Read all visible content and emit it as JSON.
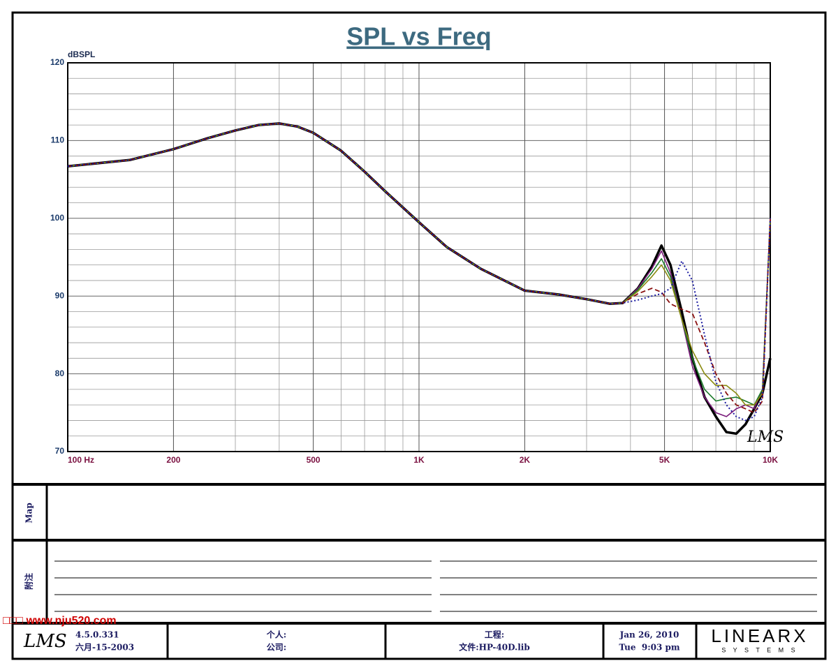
{
  "chart_data": {
    "type": "line",
    "title": "SPL vs Freq",
    "y_label": "dBSPL",
    "watermark": "LMS",
    "x": [
      100,
      150,
      200,
      250,
      300,
      350,
      400,
      450,
      500,
      600,
      700,
      800,
      1000,
      1200,
      1500,
      2000,
      2500,
      3000,
      3500,
      3800,
      4200,
      4600,
      4900,
      5200,
      5600,
      6000,
      6500,
      7000,
      7500,
      8000,
      8500,
      9000,
      9500,
      10000
    ],
    "series": [
      {
        "color": "#000000",
        "line_style": "bold",
        "values": [
          106.7,
          107.5,
          108.9,
          110.3,
          111.3,
          112,
          112.2,
          111.8,
          111,
          108.7,
          106,
          103.5,
          99.5,
          96.3,
          93.5,
          90.7,
          90.2,
          89.6,
          89,
          89.1,
          91,
          93.8,
          96.5,
          94,
          88,
          82,
          77,
          74.5,
          72.5,
          72.3,
          73.5,
          75.5,
          77.5,
          82
        ]
      },
      {
        "color": "#7a1a7a",
        "line_style": "solid",
        "values": [
          106.7,
          107.5,
          108.9,
          110.3,
          111.3,
          112,
          112.2,
          111.8,
          111,
          108.7,
          106,
          103.5,
          99.5,
          96.3,
          93.5,
          90.7,
          90.2,
          89.6,
          89,
          89.1,
          91,
          93.5,
          95.8,
          93,
          87,
          81,
          77,
          75,
          74.5,
          75.5,
          76,
          75.5,
          78,
          100
        ]
      },
      {
        "color": "#1a7a2a",
        "line_style": "solid",
        "values": [
          106.7,
          107.5,
          108.9,
          110.3,
          111.3,
          112,
          112.2,
          111.8,
          111,
          108.7,
          106,
          103.5,
          99.5,
          96.3,
          93.5,
          90.7,
          90.2,
          89.6,
          89,
          89.1,
          90.8,
          93,
          94.8,
          92.5,
          87,
          82,
          78,
          76.5,
          76.8,
          77,
          76.5,
          76,
          78,
          100
        ]
      },
      {
        "color": "#8a8a10",
        "line_style": "solid",
        "values": [
          106.7,
          107.5,
          108.9,
          110.3,
          111.3,
          112,
          112.2,
          111.8,
          111,
          108.7,
          106,
          103.5,
          99.5,
          96.3,
          93.5,
          90.7,
          90.2,
          89.6,
          89,
          89.1,
          90.6,
          92.5,
          94,
          92,
          87,
          83,
          80,
          78.5,
          78.5,
          77.5,
          76,
          76,
          77.5,
          100
        ]
      },
      {
        "color": "#8a1010",
        "line_style": "dashed",
        "values": [
          106.7,
          107.5,
          108.9,
          110.3,
          111.3,
          112,
          112.2,
          111.8,
          111,
          108.7,
          106,
          103.5,
          99.5,
          96.3,
          93.5,
          90.7,
          90.2,
          89.6,
          89,
          89.1,
          90.3,
          91,
          90.5,
          89,
          88.3,
          87.8,
          84,
          80,
          77.5,
          76,
          75.5,
          75,
          76.5,
          100
        ]
      },
      {
        "color": "#1a1aa0",
        "line_style": "dotted",
        "values": [
          106.7,
          107.5,
          108.9,
          110.3,
          111.3,
          112,
          112.2,
          111.8,
          111,
          108.7,
          106,
          103.5,
          99.5,
          96.3,
          93.5,
          90.7,
          90.2,
          89.6,
          89,
          89.1,
          89.5,
          90,
          90.3,
          91,
          94.5,
          92,
          85,
          79,
          76,
          74.5,
          74,
          74.5,
          77,
          100
        ]
      }
    ],
    "xlim": [
      100,
      10000
    ],
    "ylim": [
      70,
      120
    ],
    "log_x": true,
    "grid": true,
    "xticks": [
      {
        "value": 100,
        "label": "100  Hz"
      },
      200,
      500,
      {
        "value": 1000,
        "label": "1K"
      },
      {
        "value": 2000,
        "label": "2K"
      },
      {
        "value": 5000,
        "label": "5K"
      },
      {
        "value": 10000,
        "label": "10K"
      }
    ],
    "yticks": [
      70,
      80,
      90,
      100,
      110,
      120
    ]
  },
  "ui": {
    "map_label": "Map",
    "notes_label": "附注",
    "watermark_site": "□□□ www.nju520.com",
    "footer": {
      "logo": "LMS",
      "version": "4.5.0.331",
      "date": "六月-15-2003",
      "person": "个人:",
      "company": "公司:",
      "project": "工程:",
      "file": "文件:HP-40D.lib",
      "run_date": "Jan 26, 2010",
      "run_time": "Tue  9:03 pm",
      "brand": "LINEARX",
      "brand_sub": "S Y S T E M S"
    }
  }
}
